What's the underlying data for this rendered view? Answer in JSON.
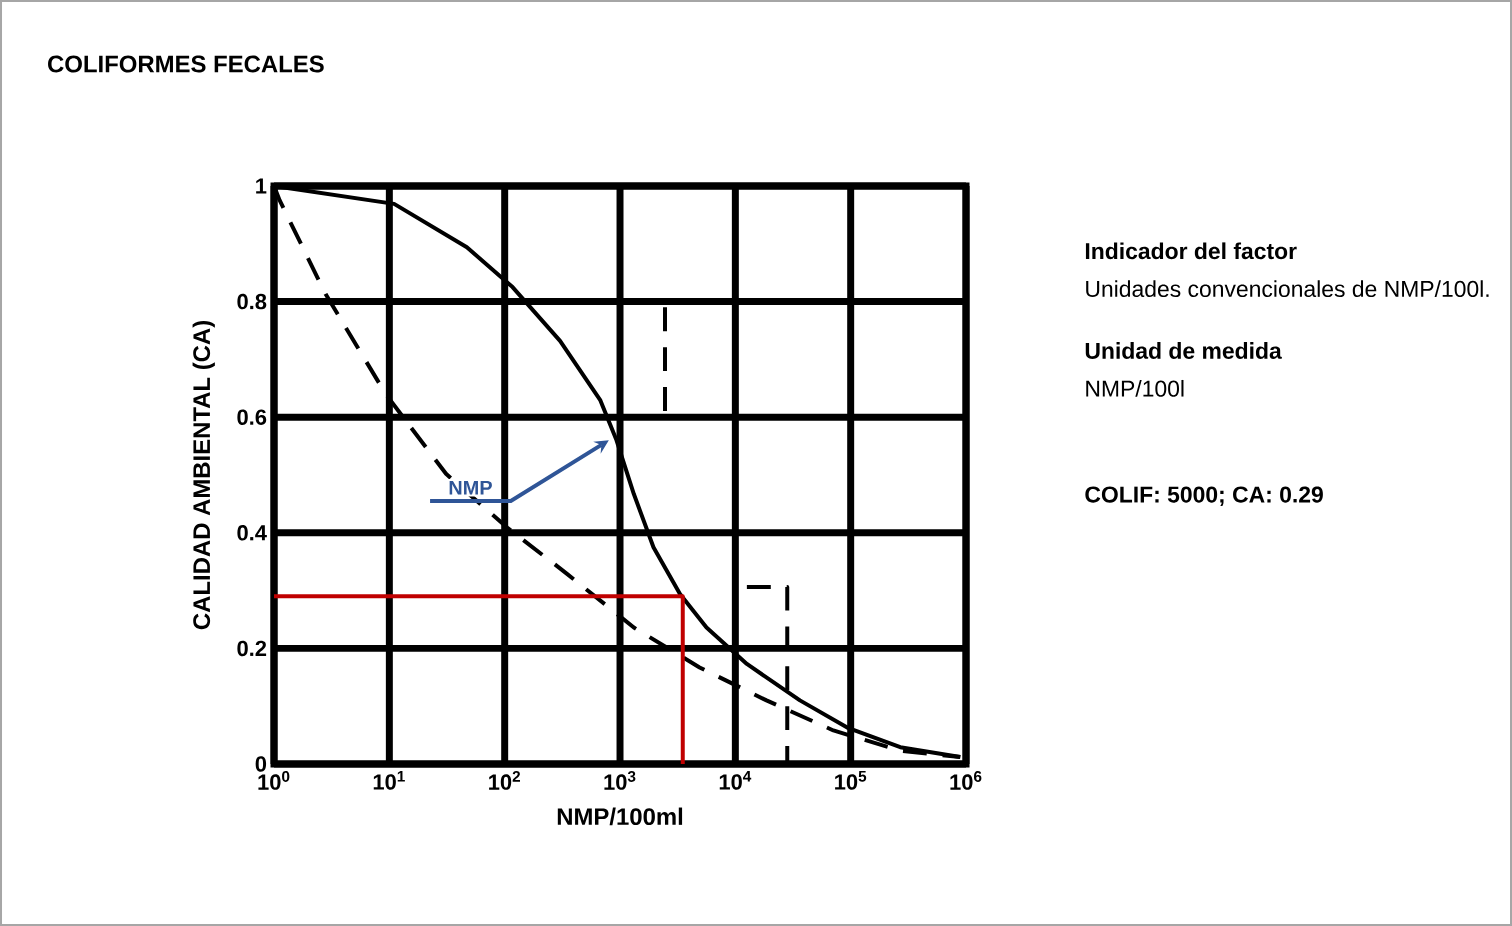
{
  "chart_data": {
    "type": "line",
    "title": "COLIFORMES FECALES",
    "xlabel": "NMP/100ml",
    "ylabel": "CALIDAD AMBIENTAL (CA)",
    "log": "x",
    "grid": true,
    "marker": "none",
    "xlim": [
      1,
      1000000
    ],
    "ylim": [
      0,
      1
    ],
    "xticks": [
      {
        "value": 1,
        "label": "10$^{0}$"
      },
      {
        "value": 10,
        "label": "10$^{1}$"
      },
      {
        "value": 100,
        "label": "10$^{2}$"
      },
      {
        "value": 1000,
        "label": "10$^{3}$"
      },
      {
        "value": 10000,
        "label": "10$^{4}$"
      },
      {
        "value": 100000,
        "label": "10$^{5}$"
      },
      {
        "value": 1000000,
        "label": "10$^{6}$"
      }
    ],
    "yticks": [
      0,
      0.2,
      0.4,
      0.6,
      0.8,
      1
    ],
    "series": [
      {
        "color": "#000000",
        "line_style": "solid",
        "x": [
          1,
          11,
          47,
          117,
          302,
          676,
          933,
          1318,
          1950,
          3311,
          5623,
          12589,
          36308,
          93325,
          269153,
          891251
        ],
        "values": [
          1,
          0.969,
          0.894,
          0.825,
          0.732,
          0.629,
          0.56,
          0.467,
          0.375,
          0.294,
          0.236,
          0.173,
          0.11,
          0.063,
          0.029,
          0.012
        ]
      },
      {
        "color": "#000000",
        "line_style": "dashed",
        "x": [
          1,
          1.12,
          2.8,
          9.3,
          31,
          105,
          347,
          1318,
          4898,
          18621,
          70795,
          269153,
          891251
        ],
        "values": [
          1,
          0.975,
          0.813,
          0.64,
          0.502,
          0.409,
          0.329,
          0.236,
          0.167,
          0.11,
          0.058,
          0.023,
          0.012
        ]
      },
      {
        "color": "#000000",
        "line_style": "dashed",
        "x": [
          2455,
          2455
        ],
        "values": [
          0.79,
          0.61
        ]
      },
      {
        "color": "#000000",
        "line_style": "dashed",
        "x": [
          12589,
          28184,
          28184
        ],
        "values": [
          0.306,
          0.306,
          0
        ]
      },
      {
        "color": "#c00000",
        "line_style": "solid",
        "x": [
          1,
          3500,
          3500
        ],
        "values": [
          0.29,
          0.29,
          0
        ]
      }
    ],
    "annotations": [
      {
        "text": "NMP",
        "x": 800,
        "y": 0.56
      },
      "Indicador del factor",
      "Unidades convencionales de NMP/100l.",
      "Unidad de medida",
      "NMP/100l",
      "COLIF: 5000; CA: 0.29"
    ]
  }
}
